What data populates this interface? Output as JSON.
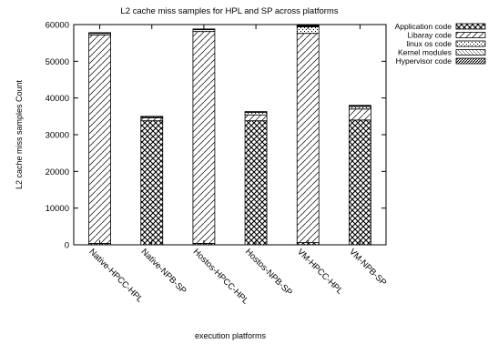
{
  "chart_data": {
    "type": "bar",
    "stacked": true,
    "title": "L2 cache miss samples for HPL and SP across platforms",
    "xlabel": "execution platforms",
    "ylabel": "L2 cache miss samples Count",
    "ylim": [
      0,
      60000
    ],
    "yticks": [
      0,
      10000,
      20000,
      30000,
      40000,
      50000,
      60000
    ],
    "legend_position": "top-right",
    "grid": false,
    "categories": [
      "Native-HPCC-HPL",
      "Native-NPB-SP",
      "Hostos-HPCC-HPL",
      "Hostos-NPB-SP",
      "VM-HPCC-HPL",
      "VM-NPB-SP"
    ],
    "series": [
      {
        "name": "Application code",
        "pattern": "crosshatch",
        "values": [
          400,
          33800,
          400,
          33800,
          600,
          34000
        ]
      },
      {
        "name": "Libaray code",
        "pattern": "dots",
        "values": [
          56800,
          800,
          57700,
          1600,
          57000,
          3000
        ]
      },
      {
        "name": "linux os code",
        "pattern": "sparse-dots",
        "values": [
          400,
          300,
          500,
          700,
          1800,
          700
        ]
      },
      {
        "name": "Kernel modules",
        "pattern": "fine-lines",
        "values": [
          200,
          100,
          200,
          200,
          200,
          200
        ]
      },
      {
        "name": "Hypervisor code",
        "pattern": "dense-diagonal",
        "values": [
          0,
          0,
          0,
          0,
          200,
          100
        ]
      }
    ]
  }
}
